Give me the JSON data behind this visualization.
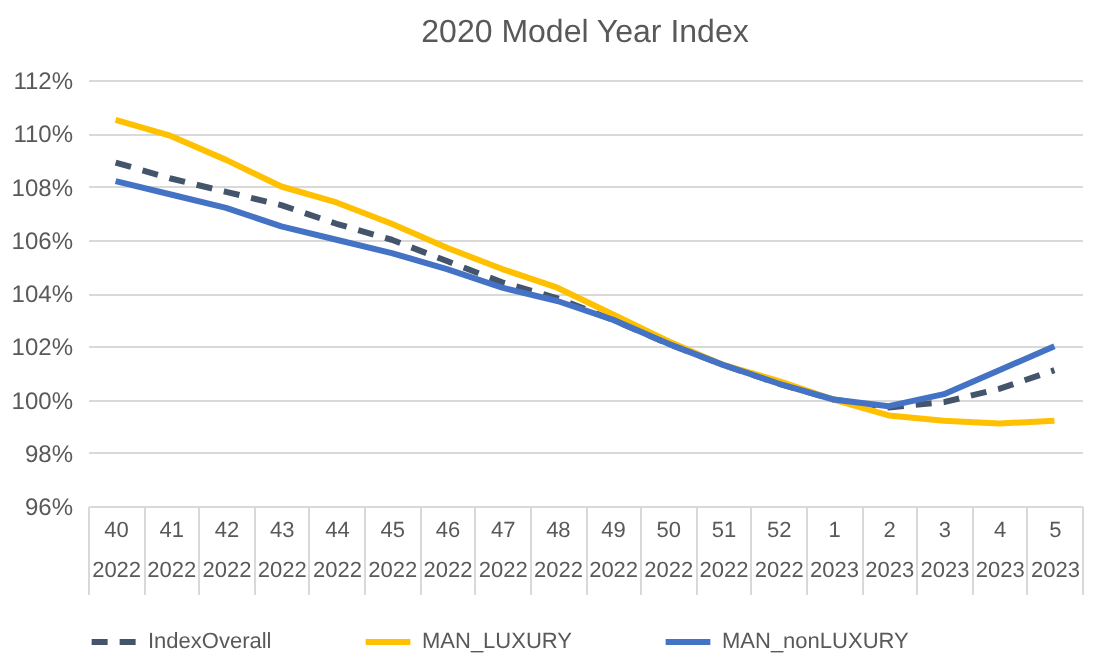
{
  "chart_data": {
    "type": "line",
    "title": "2020 Model Year Index",
    "categories": [
      "40\n2022",
      "41\n2022",
      "42\n2022",
      "43\n2022",
      "44\n2022",
      "45\n2022",
      "46\n2022",
      "47\n2022",
      "48\n2022",
      "49\n2022",
      "50\n2022",
      "51\n2022",
      "52\n2022",
      "1\n2023",
      "2\n2023",
      "3\n2023",
      "4\n2023",
      "5\n2023"
    ],
    "series": [
      {
        "name": "IndexOverall",
        "color": "#44546a",
        "line_style": "dashed",
        "values": [
          108.9,
          108.3,
          107.8,
          107.3,
          106.6,
          106.0,
          105.2,
          104.4,
          103.8,
          103.0,
          102.1,
          101.3,
          100.6,
          100.0,
          99.7,
          99.9,
          100.4,
          101.1
        ]
      },
      {
        "name": "MAN_LUXURY",
        "color": "#ffc000",
        "line_style": "solid",
        "values": [
          110.5,
          109.9,
          109.0,
          108.0,
          107.4,
          106.6,
          105.7,
          104.9,
          104.2,
          103.2,
          102.2,
          101.3,
          100.7,
          100.0,
          99.4,
          99.2,
          99.1,
          99.2
        ]
      },
      {
        "name": "MAN_nonLUXURY",
        "color": "#4472c4",
        "line_style": "solid",
        "values": [
          108.2,
          107.7,
          107.2,
          106.5,
          106.0,
          105.5,
          104.9,
          104.2,
          103.7,
          103.0,
          102.1,
          101.3,
          100.6,
          100.0,
          99.75,
          100.2,
          101.1,
          102.0
        ]
      }
    ],
    "ylim": [
      96,
      112
    ],
    "yticks": [
      {
        "value": 96,
        "label": "96%"
      },
      {
        "value": 98,
        "label": "98%"
      },
      {
        "value": 100,
        "label": "100%"
      },
      {
        "value": 102,
        "label": "102%"
      },
      {
        "value": 104,
        "label": "104%"
      },
      {
        "value": 106,
        "label": "106%"
      },
      {
        "value": 108,
        "label": "108%"
      },
      {
        "value": 110,
        "label": "110%"
      },
      {
        "value": 112,
        "label": "112%"
      }
    ],
    "grid": "y",
    "legend": "bottom",
    "marker": "none"
  }
}
